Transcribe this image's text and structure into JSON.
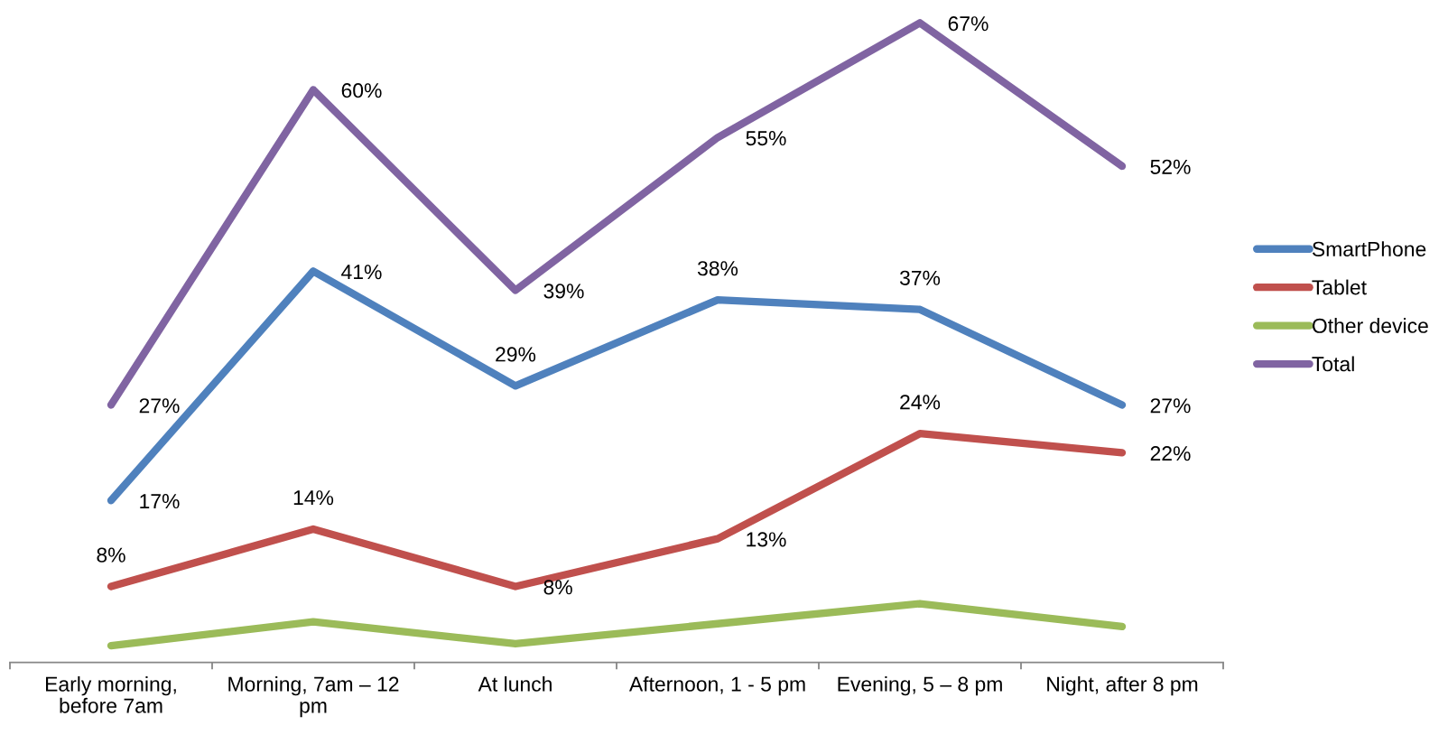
{
  "chart_data": {
    "type": "line",
    "categories": [
      "Early morning, before 7am",
      "Morning, 7am – 12 pm",
      "At lunch",
      "Afternoon, 1 - 5 pm",
      "Evening, 5 – 8 pm",
      "Night, after 8 pm"
    ],
    "series": [
      {
        "name": "SmartPhone",
        "color": "#4f81bd",
        "values": [
          17,
          41,
          29,
          38,
          37,
          27
        ],
        "value_labels": [
          "17%",
          "41%",
          "29%",
          "38%",
          "37%",
          "27%"
        ]
      },
      {
        "name": "Tablet",
        "color": "#c0504d",
        "values": [
          8,
          14,
          8,
          13,
          24,
          22
        ],
        "value_labels": [
          "8%",
          "14%",
          "8%",
          "13%",
          "24%",
          "22%"
        ]
      },
      {
        "name": "Other device",
        "color": "#9bbb59",
        "values": [
          1.8,
          4.3,
          2,
          4.1,
          6.2,
          3.8
        ]
      },
      {
        "name": "Total",
        "color": "#8064a2",
        "values": [
          27,
          60,
          39,
          55,
          67,
          52
        ],
        "value_labels": [
          "27%",
          "60%",
          "39%",
          "55%",
          "67%",
          "52%"
        ]
      }
    ],
    "tick_labels": "x",
    "legend": "right"
  }
}
